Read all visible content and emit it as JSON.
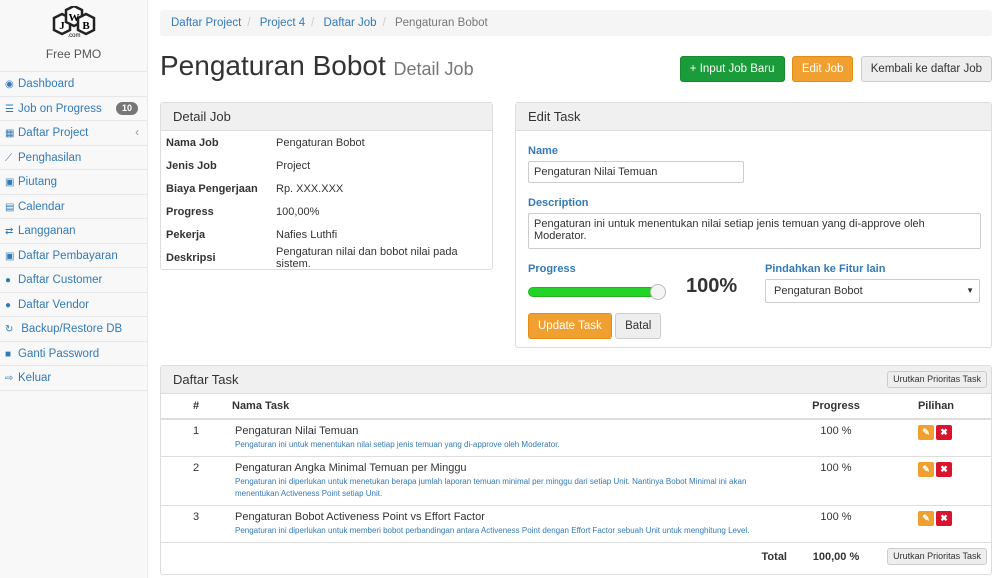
{
  "sidebar": {
    "brand": "Free PMO",
    "logo_text": "JWB.com",
    "items": [
      {
        "label": "Dashboard",
        "icon": "dashboard-icon",
        "glyph": "◉"
      },
      {
        "label": "Job on Progress",
        "icon": "tasks-icon",
        "glyph": "☰",
        "badge": "10"
      },
      {
        "label": "Daftar Project",
        "icon": "table-icon",
        "glyph": "▦",
        "chevron": "‹"
      },
      {
        "label": "Penghasilan",
        "icon": "line-chart-icon",
        "glyph": "⟋"
      },
      {
        "label": "Piutang",
        "icon": "money-icon",
        "glyph": "▣"
      },
      {
        "label": "Calendar",
        "icon": "calendar-icon",
        "glyph": "▤"
      },
      {
        "label": "Langganan",
        "icon": "retweet-icon",
        "glyph": "⇄"
      },
      {
        "label": "Daftar Pembayaran",
        "icon": "money-icon",
        "glyph": "▣"
      },
      {
        "label": "Daftar Customer",
        "icon": "users-icon",
        "glyph": "●"
      },
      {
        "label": "Daftar Vendor",
        "icon": "users-icon",
        "glyph": "●"
      },
      {
        "label": " Backup/Restore DB",
        "icon": "refresh-icon",
        "glyph": "↻"
      },
      {
        "label": "Ganti Password",
        "icon": "lock-icon",
        "glyph": "■"
      },
      {
        "label": "Keluar",
        "icon": "sign-out-icon",
        "glyph": "⇨"
      }
    ]
  },
  "breadcrumb": [
    "Daftar Project",
    "Project 4",
    "Daftar Job",
    "Pengaturan Bobot"
  ],
  "page": {
    "title": "Pengaturan Bobot",
    "subtitle": "Detail Job"
  },
  "buttons": {
    "input_job": "+ Input Job Baru",
    "edit_job": "Edit Job",
    "back": "Kembali ke daftar Job"
  },
  "detail_job": {
    "title": "Detail Job",
    "rows": [
      {
        "k": "Nama Job",
        "v": "Pengaturan Bobot"
      },
      {
        "k": "Jenis Job",
        "v": "Project"
      },
      {
        "k": "Biaya Pengerjaan",
        "v": "Rp. XXX.XXX"
      },
      {
        "k": "Progress",
        "v": "100,00%"
      },
      {
        "k": "Pekerja",
        "v": "Nafies Luthfi"
      },
      {
        "k": "Deskripsi",
        "v": "Pengaturan nilai dan bobot nilai pada sistem."
      }
    ]
  },
  "edit_task": {
    "title": "Edit Task",
    "name_label": "Name",
    "name_value": "Pengaturan Nilai Temuan",
    "desc_label": "Description",
    "desc_value": "Pengaturan ini untuk menentukan nilai setiap jenis temuan yang di-approve oleh Moderator.",
    "progress_label": "Progress",
    "progress_value": 100,
    "progress_text": "100%",
    "move_label": "Pindahkan ke Fitur lain",
    "move_value": "Pengaturan Bobot",
    "update": "Update Task",
    "cancel": "Batal"
  },
  "tasks": {
    "title": "Daftar Task",
    "sort_button": "Urutkan Prioritas Task",
    "headers": [
      "#",
      "Nama Task",
      "Progress",
      "Pilihan"
    ],
    "rows": [
      {
        "no": "1",
        "name": "Pengaturan Nilai Temuan",
        "desc": "Pengaturan ini untuk menentukan nilai setiap jenis temuan yang di-approve oleh Moderator.",
        "progress": "100 %"
      },
      {
        "no": "2",
        "name": "Pengaturan Angka Minimal Temuan per Minggu",
        "desc": "Pengaturan ini diperlukan untuk menetukan berapa jumlah laporan temuan minimal per minggu dari setiap Unit. Nantinya Bobot Minimal ini akan menentukan Activeness Point setiap Unit.",
        "progress": "100 %"
      },
      {
        "no": "3",
        "name": "Pengaturan Bobot Activeness Point vs Effort Factor",
        "desc": "Pengaturan ini diperlukan untuk memberi bobot perbandingan antara Activeness Point dengan Effort Factor sebuah Unit untuk menghitung Level.",
        "progress": "100 %"
      }
    ],
    "total_label": "Total",
    "total_value": "100,00 %"
  },
  "colors": {
    "link": "#337ab7",
    "success": "#1a9c3a",
    "warning": "#f0a030",
    "danger": "#d9142f"
  }
}
